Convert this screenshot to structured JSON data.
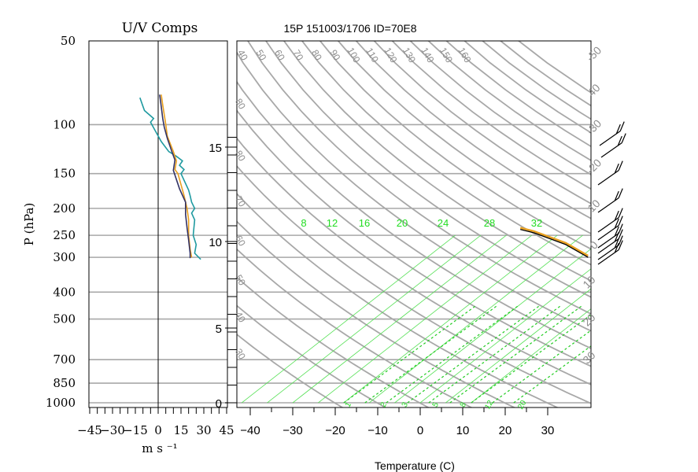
{
  "chart_data": [
    {
      "type": "line",
      "title": "U/V Comps",
      "xlabel": "m s ⁻¹",
      "ylabel": "P (hPa)",
      "xlim": [
        -50,
        50
      ],
      "x_ticks": [
        -45,
        -30,
        -15,
        0,
        15,
        30,
        45
      ],
      "x_tick_labels": [
        "−45",
        "−30",
        "−15",
        "0",
        "15",
        "30",
        "45"
      ],
      "y_scale": "log",
      "ylim": [
        1000,
        50
      ],
      "y_ticks": [
        1000,
        850,
        700,
        500,
        400,
        300,
        250,
        200,
        150,
        100,
        50
      ],
      "y_tick_labels": [
        "1000",
        "850",
        "700",
        "500",
        "400",
        "300",
        "250",
        "200",
        "150",
        "100",
        "50"
      ],
      "series": [
        {
          "color": "#1f9aa0",
          "points": [
            [
              -12,
              80
            ],
            [
              -10,
              86
            ],
            [
              -9,
              89
            ],
            [
              -3,
              95
            ],
            [
              -5,
              98
            ],
            [
              -2,
              105
            ],
            [
              2,
              115
            ],
            [
              7,
              125
            ],
            [
              12,
              130
            ],
            [
              16,
              135
            ],
            [
              14,
              140
            ],
            [
              17,
              145
            ],
            [
              15,
              150
            ],
            [
              20,
              172
            ],
            [
              21,
              180
            ],
            [
              22,
              190
            ],
            [
              24,
              200
            ],
            [
              22,
              208
            ],
            [
              24,
              220
            ],
            [
              23,
              250
            ],
            [
              25,
              270
            ],
            [
              24,
              290
            ],
            [
              28,
              305
            ]
          ]
        },
        {
          "color": "#e8a020",
          "points": [
            [
              2,
              78
            ],
            [
              3,
              85
            ],
            [
              4,
              92
            ],
            [
              5,
              100
            ],
            [
              6,
              110
            ],
            [
              10,
              125
            ],
            [
              12,
              135
            ],
            [
              11,
              145
            ],
            [
              13,
              150
            ],
            [
              17,
              180
            ],
            [
              19,
              200
            ],
            [
              20,
              220
            ],
            [
              20,
              250
            ],
            [
              21,
              280
            ],
            [
              22,
              300
            ]
          ]
        },
        {
          "color": "#333366",
          "points": [
            [
              1,
              78
            ],
            [
              2,
              86
            ],
            [
              3,
              95
            ],
            [
              4,
              102
            ],
            [
              6,
              112
            ],
            [
              9,
              125
            ],
            [
              11,
              134
            ],
            [
              10,
              146
            ],
            [
              14,
              170
            ],
            [
              18,
              190
            ],
            [
              18,
              210
            ],
            [
              19,
              235
            ],
            [
              20,
              260
            ],
            [
              21,
              290
            ],
            [
              21,
              302
            ]
          ]
        }
      ]
    },
    {
      "type": "line",
      "title": "15P 151003/1706 ID=70E8",
      "xlabel": "Temperature (C)",
      "x_ticks": [
        -40,
        -30,
        -20,
        -10,
        0,
        10,
        20,
        30
      ],
      "x_tick_labels": [
        "−40",
        "−30",
        "−20",
        "−10",
        "0",
        "10",
        "20",
        "30"
      ],
      "y_scale": "log",
      "ylim": [
        1000,
        50
      ],
      "right_axis_ticks": [
        0,
        5,
        10,
        15
      ],
      "dry_adiabat_labels": [
        "40",
        "50",
        "60",
        "70",
        "80",
        "90",
        "100",
        "110",
        "120",
        "130",
        "140",
        "150",
        "160"
      ],
      "isotherm_labels": [
        "-50",
        "40",
        "-30",
        "-20",
        "10",
        "0",
        "10",
        "20",
        "30"
      ],
      "left_labels": [
        "80",
        "80",
        "70",
        "60",
        "50",
        "40",
        "30"
      ],
      "mixing_ratio_labels": [
        "8",
        "12",
        "16",
        "20",
        "24",
        "28",
        "32"
      ],
      "mixing_ratio_bottom_labels": [
        "1",
        "2",
        "3",
        "5",
        "8",
        "12",
        "20"
      ],
      "series": [
        {
          "name": "temperature",
          "color": "#000000",
          "points": [
            [
              16,
              300
            ],
            [
              14,
              270
            ],
            [
              11,
              240
            ],
            [
              8,
              215
            ],
            [
              5,
              190
            ],
            [
              2,
              165
            ],
            [
              -1,
              140
            ],
            [
              -2,
              120
            ],
            [
              -5,
              100
            ],
            [
              -8,
              97
            ],
            [
              -3,
              93
            ],
            [
              3,
              88
            ],
            [
              12,
              85
            ],
            [
              20,
              80
            ]
          ]
        },
        {
          "name": "dewpoint",
          "color": "#000000",
          "points": [
            [
              8,
              300
            ],
            [
              0,
              270
            ],
            [
              -10,
              245
            ],
            [
              -14,
              238
            ]
          ]
        },
        {
          "name": "parcel",
          "color": "#44d8e0",
          "points": [
            [
              16,
              300
            ],
            [
              14,
              280
            ],
            [
              12,
              255
            ],
            [
              11,
              232
            ],
            [
              42,
              80
            ]
          ]
        }
      ]
    }
  ]
}
